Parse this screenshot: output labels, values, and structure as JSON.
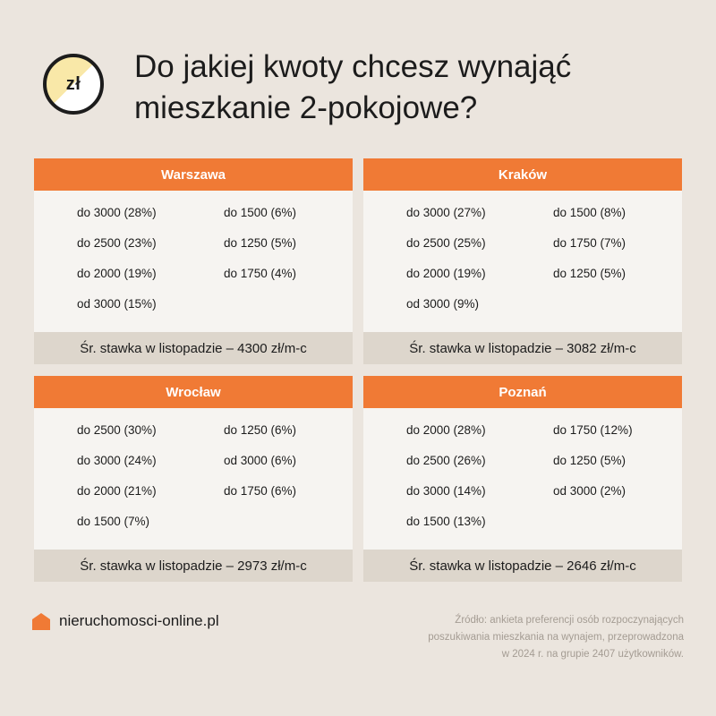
{
  "header": {
    "badge_text": "zł",
    "title_lines": [
      "Do jakiej kwoty chcesz wynająć",
      "mieszkanie 2-pokojowe?"
    ]
  },
  "cards": [
    {
      "city": "Warszawa",
      "left_items": [
        "do 3000 (28%)",
        "do 2500 (23%)",
        "do 2000 (19%)",
        "od 3000 (15%)"
      ],
      "right_items": [
        "do 1500 (6%)",
        "do 1250 (5%)",
        "do 1750 (4%)"
      ],
      "avg_rate": "Śr. stawka w listopadzie – 4300 zł/m-c"
    },
    {
      "city": "Kraków",
      "left_items": [
        "do 3000 (27%)",
        "do 2500 (25%)",
        "do 2000 (19%)",
        "od 3000 (9%)"
      ],
      "right_items": [
        "do 1500 (8%)",
        "do 1750 (7%)",
        "do 1250 (5%)"
      ],
      "avg_rate": "Śr. stawka w listopadzie – 3082 zł/m-c"
    },
    {
      "city": "Wrocław",
      "left_items": [
        "do 2500 (30%)",
        "do 3000 (24%)",
        "do 2000 (21%)",
        "do 1500 (7%)"
      ],
      "right_items": [
        "do 1250 (6%)",
        "od 3000 (6%)",
        "do 1750 (6%)"
      ],
      "avg_rate": "Śr. stawka w listopadzie – 2973 zł/m-c"
    },
    {
      "city": "Poznań",
      "left_items": [
        "do 2000 (28%)",
        "do 2500 (26%)",
        "do 3000 (14%)",
        "do 1500 (13%)"
      ],
      "right_items": [
        "do 1750 (12%)",
        "do 1250 (5%)",
        "od 3000 (2%)"
      ],
      "avg_rate": "Śr. stawka w listopadzie – 2646 zł/m-c"
    }
  ],
  "footer": {
    "brand_icon": "house-icon",
    "brand_name": "nieruchomosci-online.pl",
    "source_lines": [
      "Źródło: ankieta preferencji osób rozpoczynających",
      "poszukiwania mieszkania na wynajem, przeprowadzona",
      "w 2024 r. na grupie 2407 użytkowników."
    ]
  },
  "colors": {
    "background": "#ebe5de",
    "accent": "#f07a35",
    "card_body": "#f6f4f1",
    "card_footer": "#ddd6cc",
    "badge_fill": "#f9e8a8",
    "source_text": "#a49c93"
  }
}
